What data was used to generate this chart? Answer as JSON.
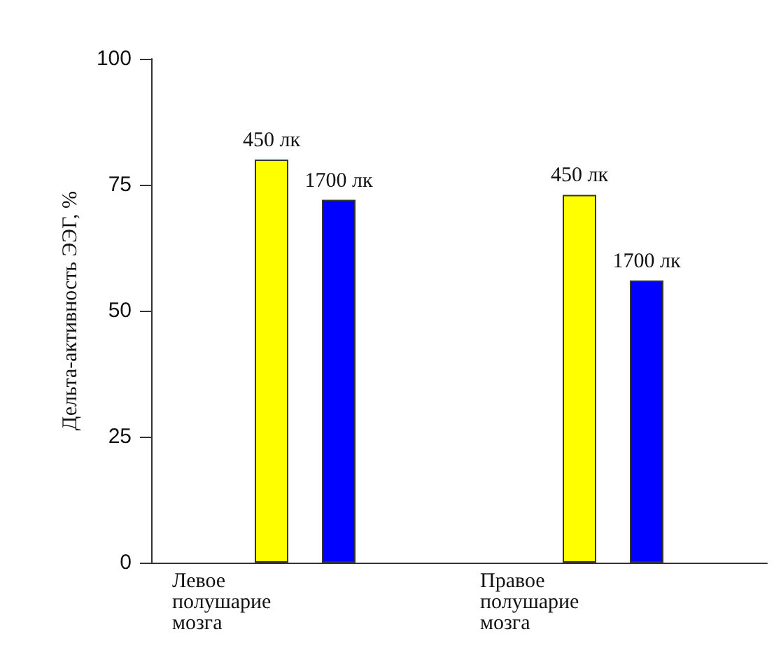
{
  "chart_data": {
    "type": "bar",
    "ylabel": "Дельта-активность ЭЭГ, %",
    "categories": [
      "Левое полушарие мозга",
      "Правое полушарие мозга"
    ],
    "series": [
      {
        "name": "450 лк",
        "color": "#ffff00",
        "values": [
          80,
          73
        ]
      },
      {
        "name": "1700 лк",
        "color": "#0000ff",
        "values": [
          72,
          56
        ]
      }
    ],
    "ylim": [
      0,
      100
    ],
    "yticks": [
      0,
      25,
      50,
      75,
      100
    ],
    "grid": false,
    "legend": false
  }
}
